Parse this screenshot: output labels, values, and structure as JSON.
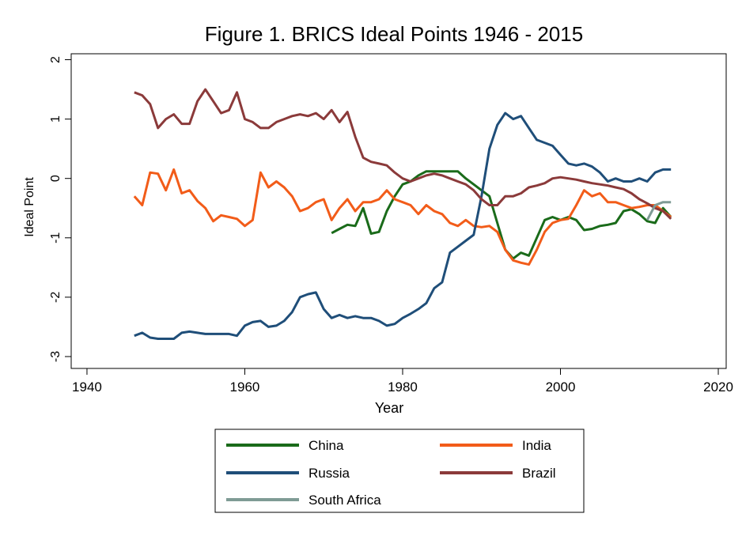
{
  "chart_data": {
    "type": "line",
    "title": "Figure 1. BRICS Ideal Points 1946 - 2015",
    "xlabel": "Year",
    "ylabel": "Ideal Point",
    "xlim": [
      1938,
      2021
    ],
    "ylim": [
      -3.2,
      2.1
    ],
    "x_ticks": [
      1940,
      1960,
      1980,
      2000,
      2020
    ],
    "y_ticks": [
      -3,
      -2,
      -1,
      0,
      1,
      2
    ],
    "x_tick_labels": [
      "1940",
      "1960",
      "1980",
      "2000",
      "2020"
    ],
    "y_tick_labels": [
      "-3",
      "-2",
      "-1",
      "0",
      "1",
      "2"
    ],
    "grid": false,
    "legend_position": "bottom",
    "series": [
      {
        "name": "China",
        "color": "#1a6b1a",
        "x": [
          1971,
          1972,
          1973,
          1974,
          1975,
          1976,
          1977,
          1978,
          1979,
          1980,
          1981,
          1982,
          1983,
          1984,
          1985,
          1986,
          1987,
          1988,
          1989,
          1990,
          1991,
          1992,
          1993,
          1994,
          1995,
          1996,
          1997,
          1998,
          1999,
          2000,
          2001,
          2002,
          2003,
          2004,
          2005,
          2006,
          2007,
          2008,
          2009,
          2010,
          2011,
          2012,
          2013,
          2014
        ],
        "y": [
          -0.92,
          -0.85,
          -0.78,
          -0.8,
          -0.5,
          -0.93,
          -0.9,
          -0.55,
          -0.3,
          -0.1,
          -0.05,
          0.05,
          0.12,
          0.12,
          0.12,
          0.12,
          0.12,
          0.0,
          -0.1,
          -0.2,
          -0.3,
          -0.75,
          -1.2,
          -1.35,
          -1.25,
          -1.3,
          -1.0,
          -0.7,
          -0.65,
          -0.7,
          -0.65,
          -0.7,
          -0.87,
          -0.85,
          -0.8,
          -0.78,
          -0.75,
          -0.55,
          -0.52,
          -0.6,
          -0.72,
          -0.75,
          -0.5,
          -0.65
        ]
      },
      {
        "name": "India",
        "color": "#f25c19",
        "x": [
          1946,
          1947,
          1948,
          1949,
          1950,
          1951,
          1952,
          1953,
          1954,
          1955,
          1956,
          1957,
          1958,
          1959,
          1960,
          1961,
          1962,
          1963,
          1964,
          1965,
          1966,
          1967,
          1968,
          1969,
          1970,
          1971,
          1972,
          1973,
          1974,
          1975,
          1976,
          1977,
          1978,
          1979,
          1980,
          1981,
          1982,
          1983,
          1984,
          1985,
          1986,
          1987,
          1988,
          1989,
          1990,
          1991,
          1992,
          1993,
          1994,
          1995,
          1996,
          1997,
          1998,
          1999,
          2000,
          2001,
          2002,
          2003,
          2004,
          2005,
          2006,
          2007,
          2008,
          2009,
          2010,
          2011,
          2012,
          2013,
          2014
        ],
        "y": [
          -0.3,
          -0.45,
          0.1,
          0.08,
          -0.2,
          0.15,
          -0.25,
          -0.2,
          -0.38,
          -0.5,
          -0.72,
          -0.62,
          -0.65,
          -0.68,
          -0.8,
          -0.7,
          0.1,
          -0.15,
          -0.05,
          -0.15,
          -0.3,
          -0.55,
          -0.5,
          -0.4,
          -0.35,
          -0.7,
          -0.5,
          -0.35,
          -0.55,
          -0.4,
          -0.4,
          -0.35,
          -0.2,
          -0.35,
          -0.4,
          -0.45,
          -0.6,
          -0.45,
          -0.55,
          -0.6,
          -0.75,
          -0.8,
          -0.7,
          -0.8,
          -0.82,
          -0.8,
          -0.9,
          -1.2,
          -1.38,
          -1.42,
          -1.45,
          -1.2,
          -0.9,
          -0.75,
          -0.7,
          -0.68,
          -0.45,
          -0.2,
          -0.3,
          -0.25,
          -0.4,
          -0.4,
          -0.45,
          -0.5,
          -0.48,
          -0.45,
          -0.45,
          -0.55,
          -0.65
        ]
      },
      {
        "name": "Russia",
        "color": "#1f4e79",
        "x": [
          1946,
          1947,
          1948,
          1949,
          1950,
          1951,
          1952,
          1953,
          1954,
          1955,
          1956,
          1957,
          1958,
          1959,
          1960,
          1961,
          1962,
          1963,
          1964,
          1965,
          1966,
          1967,
          1968,
          1969,
          1970,
          1971,
          1972,
          1973,
          1974,
          1975,
          1976,
          1977,
          1978,
          1979,
          1980,
          1981,
          1982,
          1983,
          1984,
          1985,
          1986,
          1987,
          1988,
          1989,
          1990,
          1991,
          1992,
          1993,
          1994,
          1995,
          1996,
          1997,
          1998,
          1999,
          2000,
          2001,
          2002,
          2003,
          2004,
          2005,
          2006,
          2007,
          2008,
          2009,
          2010,
          2011,
          2012,
          2013,
          2014
        ],
        "y": [
          -2.65,
          -2.6,
          -2.68,
          -2.7,
          -2.7,
          -2.7,
          -2.6,
          -2.58,
          -2.6,
          -2.62,
          -2.62,
          -2.62,
          -2.62,
          -2.65,
          -2.48,
          -2.42,
          -2.4,
          -2.5,
          -2.48,
          -2.4,
          -2.25,
          -2.0,
          -1.95,
          -1.92,
          -2.2,
          -2.35,
          -2.3,
          -2.35,
          -2.32,
          -2.35,
          -2.35,
          -2.4,
          -2.48,
          -2.45,
          -2.35,
          -2.28,
          -2.2,
          -2.1,
          -1.85,
          -1.75,
          -1.25,
          -1.15,
          -1.05,
          -0.95,
          -0.3,
          0.5,
          0.9,
          1.1,
          1.0,
          1.05,
          0.85,
          0.65,
          0.6,
          0.55,
          0.4,
          0.25,
          0.22,
          0.25,
          0.2,
          0.1,
          -0.05,
          0.0,
          -0.05,
          -0.05,
          0.0,
          -0.05,
          0.1,
          0.15,
          0.15
        ]
      },
      {
        "name": "Brazil",
        "color": "#8b3a3a",
        "x": [
          1946,
          1947,
          1948,
          1949,
          1950,
          1951,
          1952,
          1953,
          1954,
          1955,
          1956,
          1957,
          1958,
          1959,
          1960,
          1961,
          1962,
          1963,
          1964,
          1965,
          1966,
          1967,
          1968,
          1969,
          1970,
          1971,
          1972,
          1973,
          1974,
          1975,
          1976,
          1977,
          1978,
          1979,
          1980,
          1981,
          1982,
          1983,
          1984,
          1985,
          1986,
          1987,
          1988,
          1989,
          1990,
          1991,
          1992,
          1993,
          1994,
          1995,
          1996,
          1997,
          1998,
          1999,
          2000,
          2001,
          2002,
          2003,
          2004,
          2005,
          2006,
          2007,
          2008,
          2009,
          2010,
          2011,
          2012,
          2013,
          2014
        ],
        "y": [
          1.45,
          1.4,
          1.25,
          0.85,
          1.0,
          1.08,
          0.92,
          0.92,
          1.3,
          1.5,
          1.3,
          1.1,
          1.15,
          1.45,
          1.0,
          0.95,
          0.85,
          0.85,
          0.95,
          1.0,
          1.05,
          1.08,
          1.05,
          1.1,
          1.0,
          1.15,
          0.95,
          1.12,
          0.7,
          0.35,
          0.28,
          0.25,
          0.22,
          0.1,
          0.0,
          -0.05,
          0.0,
          0.05,
          0.08,
          0.05,
          0.0,
          -0.05,
          -0.1,
          -0.2,
          -0.35,
          -0.45,
          -0.45,
          -0.3,
          -0.3,
          -0.25,
          -0.15,
          -0.12,
          -0.08,
          0.0,
          0.02,
          0.0,
          -0.02,
          -0.05,
          -0.08,
          -0.1,
          -0.12,
          -0.15,
          -0.18,
          -0.25,
          -0.35,
          -0.42,
          -0.5,
          -0.55,
          -0.68
        ]
      },
      {
        "name": "South Africa",
        "color": "#7f9b95",
        "x": [
          2011,
          2012,
          2013,
          2014
        ],
        "y": [
          -0.7,
          -0.45,
          -0.4,
          -0.4
        ]
      }
    ]
  }
}
